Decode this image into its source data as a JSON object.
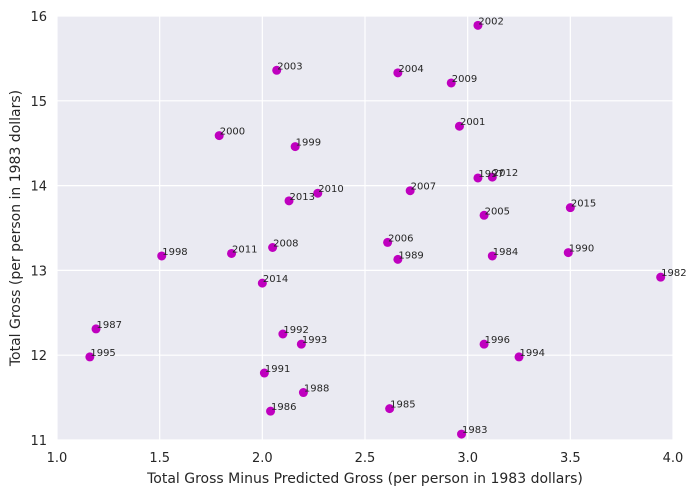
{
  "chart_data": {
    "type": "scatter",
    "title": "",
    "xlabel": "Total Gross Minus Predicted Gross (per person in 1983 dollars)",
    "ylabel": "Total Gross (per person in 1983 dollars)",
    "xlim": [
      1.0,
      4.0
    ],
    "ylim": [
      11,
      16
    ],
    "xticks": [
      "1.0",
      "1.5",
      "2.0",
      "2.5",
      "3.0",
      "3.5",
      "4.0"
    ],
    "yticks": [
      "11",
      "12",
      "13",
      "14",
      "15",
      "16"
    ],
    "grid": true,
    "marker_color": "#bf00bf",
    "background_color": "#eaeaf2",
    "points": [
      {
        "label": "2002",
        "x": 3.05,
        "y": 15.89
      },
      {
        "label": "2003",
        "x": 2.07,
        "y": 15.36
      },
      {
        "label": "2004",
        "x": 2.66,
        "y": 15.33
      },
      {
        "label": "2009",
        "x": 2.92,
        "y": 15.21
      },
      {
        "label": "2001",
        "x": 2.96,
        "y": 14.7
      },
      {
        "label": "2000",
        "x": 1.79,
        "y": 14.59
      },
      {
        "label": "1999",
        "x": 2.16,
        "y": 14.46
      },
      {
        "label": "1997",
        "x": 3.05,
        "y": 14.09
      },
      {
        "label": "2012",
        "x": 3.12,
        "y": 14.1
      },
      {
        "label": "2007",
        "x": 2.72,
        "y": 13.94
      },
      {
        "label": "2010",
        "x": 2.27,
        "y": 13.91
      },
      {
        "label": "2013",
        "x": 2.13,
        "y": 13.82
      },
      {
        "label": "2015",
        "x": 3.5,
        "y": 13.74
      },
      {
        "label": "2005",
        "x": 3.08,
        "y": 13.65
      },
      {
        "label": "2006",
        "x": 2.61,
        "y": 13.33
      },
      {
        "label": "2008",
        "x": 2.05,
        "y": 13.27
      },
      {
        "label": "1990",
        "x": 3.49,
        "y": 13.21
      },
      {
        "label": "2011",
        "x": 1.85,
        "y": 13.2
      },
      {
        "label": "1998",
        "x": 1.51,
        "y": 13.17
      },
      {
        "label": "1984",
        "x": 3.12,
        "y": 13.17
      },
      {
        "label": "1989",
        "x": 2.66,
        "y": 13.13
      },
      {
        "label": "1982",
        "x": 3.94,
        "y": 12.92
      },
      {
        "label": "2014",
        "x": 2.0,
        "y": 12.85
      },
      {
        "label": "1987",
        "x": 1.19,
        "y": 12.31
      },
      {
        "label": "1992",
        "x": 2.1,
        "y": 12.25
      },
      {
        "label": "1993",
        "x": 2.19,
        "y": 12.13
      },
      {
        "label": "1996",
        "x": 3.08,
        "y": 12.13
      },
      {
        "label": "1995",
        "x": 1.16,
        "y": 11.98
      },
      {
        "label": "1994",
        "x": 3.25,
        "y": 11.98
      },
      {
        "label": "1991",
        "x": 2.01,
        "y": 11.79
      },
      {
        "label": "1988",
        "x": 2.2,
        "y": 11.56
      },
      {
        "label": "1985",
        "x": 2.62,
        "y": 11.37
      },
      {
        "label": "1986",
        "x": 2.04,
        "y": 11.34
      },
      {
        "label": "1983",
        "x": 2.97,
        "y": 11.07
      }
    ]
  }
}
